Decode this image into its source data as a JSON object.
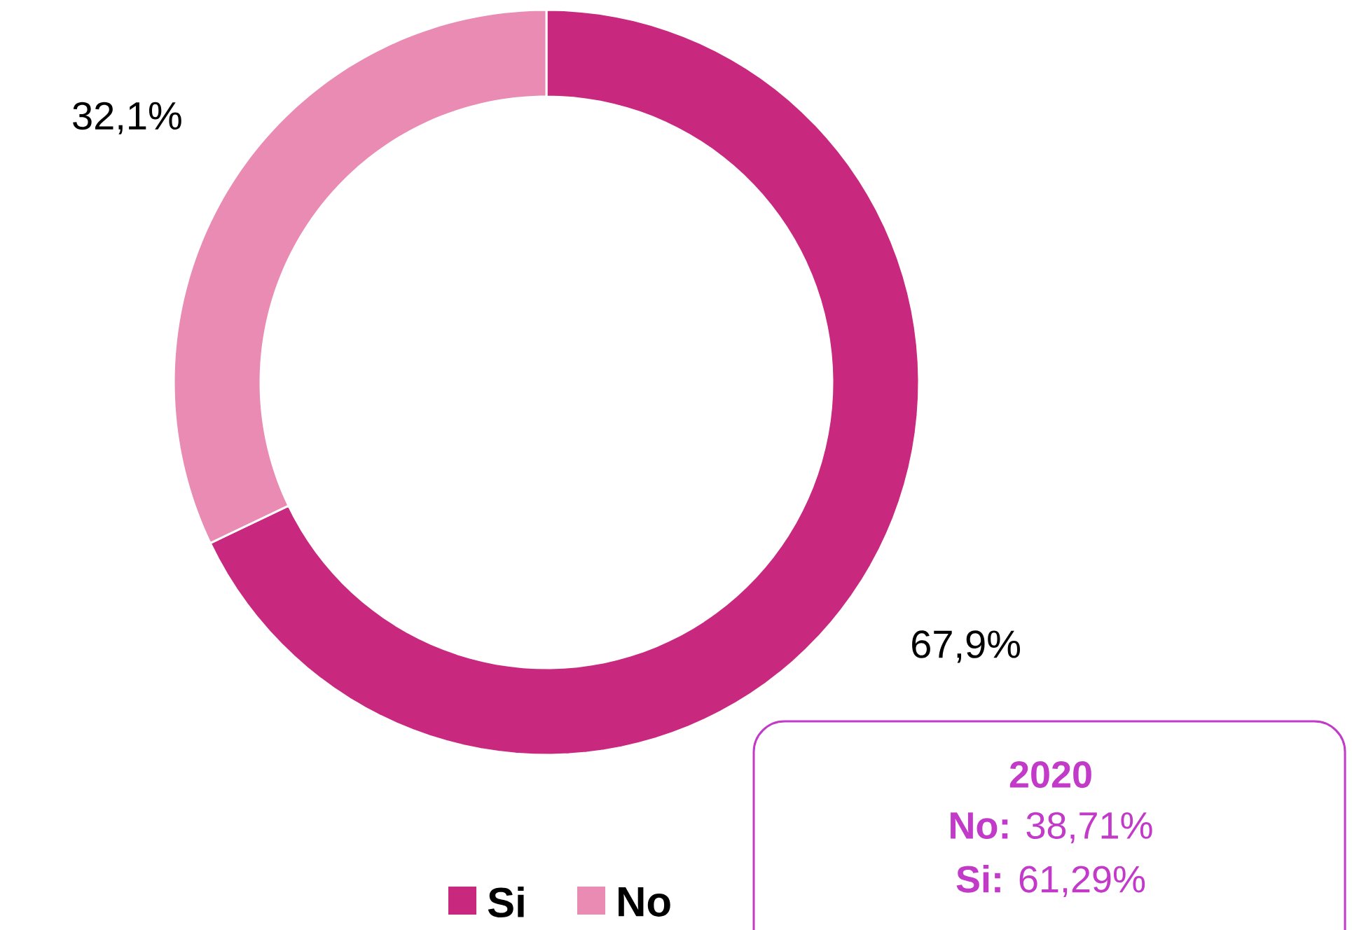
{
  "chart_data": {
    "type": "donut",
    "categories": [
      "Si",
      "No"
    ],
    "values": [
      67.9,
      32.1
    ],
    "colors": [
      "#c9287f",
      "#e98bb3"
    ],
    "value_labels": [
      "67,9%",
      "32,1%"
    ],
    "legend": "bottom",
    "annotations": [
      "**2020**",
      "**No:** 38,71%",
      "**Si:** 61,29%"
    ]
  }
}
